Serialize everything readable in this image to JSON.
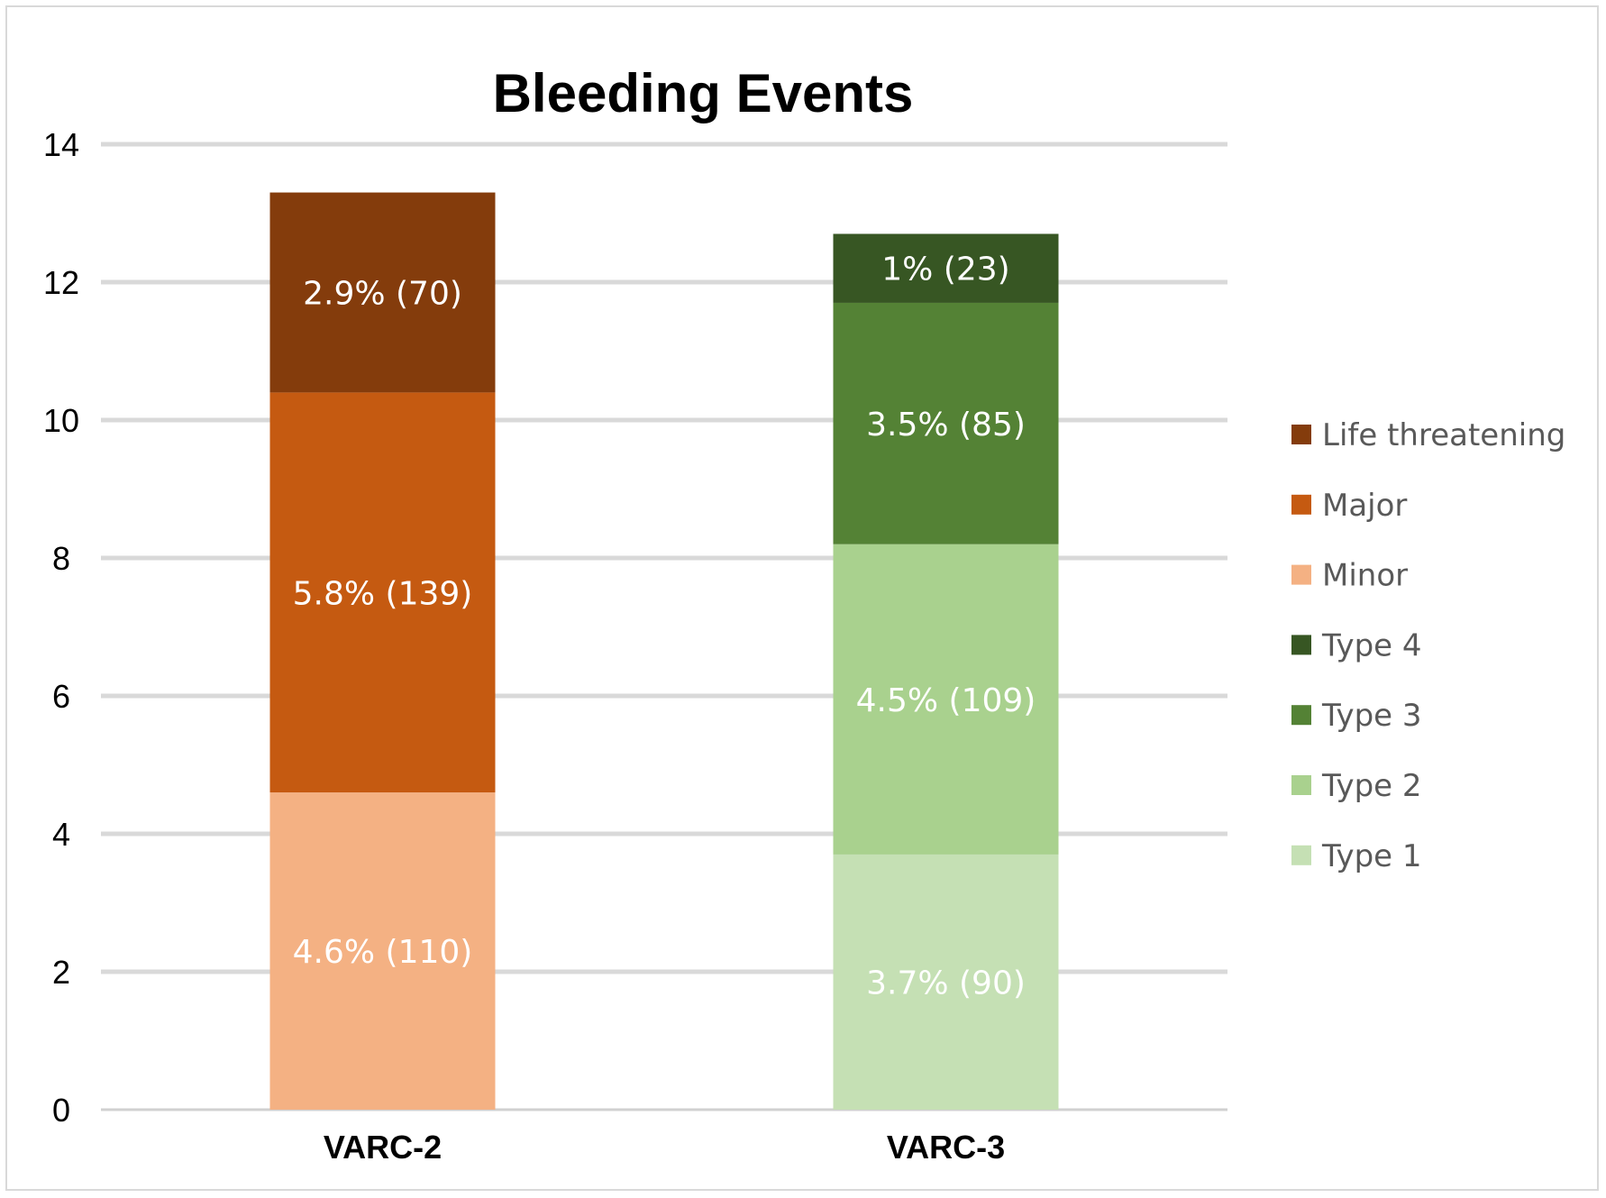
{
  "chart_data": {
    "type": "bar",
    "stacked": true,
    "title": "Bleeding Events",
    "xlabel": "",
    "ylabel": "",
    "ylim": [
      0,
      14
    ],
    "yticks": [
      "0",
      "2",
      "4",
      "6",
      "8",
      "10",
      "12",
      "14"
    ],
    "categories": [
      "VARC-2",
      "VARC-3"
    ],
    "grid": true,
    "legend_position": "right",
    "series": [
      {
        "name": "Life threatening",
        "color": "#843C0C",
        "values": [
          2.9,
          null
        ],
        "labels": [
          "2.9% (70)",
          ""
        ]
      },
      {
        "name": "Major",
        "color": "#C55A11",
        "values": [
          5.8,
          null
        ],
        "labels": [
          "5.8% (139)",
          ""
        ]
      },
      {
        "name": "Minor",
        "color": "#F4B183",
        "values": [
          4.6,
          null
        ],
        "labels": [
          "4.6% (110)",
          ""
        ]
      },
      {
        "name": "Type 4",
        "color": "#375623",
        "values": [
          null,
          1.0
        ],
        "labels": [
          "",
          "1% (23)"
        ]
      },
      {
        "name": "Type 3",
        "color": "#548235",
        "values": [
          null,
          3.5
        ],
        "labels": [
          "",
          "3.5% (85)"
        ]
      },
      {
        "name": "Type 2",
        "color": "#A9D18E",
        "values": [
          null,
          4.5
        ],
        "labels": [
          "",
          "4.5% (109)"
        ]
      },
      {
        "name": "Type 1",
        "color": "#C5E0B4",
        "values": [
          null,
          3.7
        ],
        "labels": [
          "",
          "3.7% (90)"
        ]
      }
    ]
  }
}
